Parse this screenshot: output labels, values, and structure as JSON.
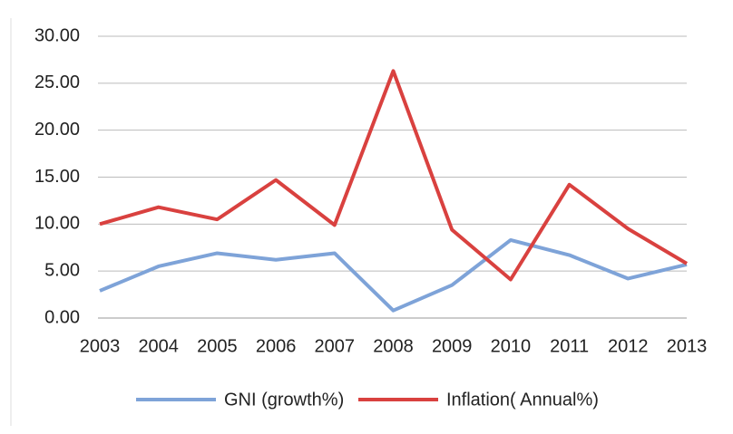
{
  "chart_data": {
    "type": "line",
    "categories": [
      "2003",
      "2004",
      "2005",
      "2006",
      "2007",
      "2008",
      "2009",
      "2010",
      "2011",
      "2012",
      "2013"
    ],
    "series": [
      {
        "name": "GNI (growth%)",
        "color": "#7ea3d8",
        "values": [
          2.9,
          5.5,
          6.9,
          6.2,
          6.9,
          0.8,
          3.5,
          8.3,
          6.7,
          4.2,
          5.7
        ]
      },
      {
        "name": "Inflation( Annual%)",
        "color": "#d9413f",
        "values": [
          10.0,
          11.8,
          10.5,
          14.7,
          9.9,
          26.3,
          9.4,
          4.1,
          14.2,
          9.5,
          5.8
        ]
      }
    ],
    "ylim": [
      0,
      30
    ],
    "yticks": [
      {
        "value": 0,
        "label": "0.00"
      },
      {
        "value": 5,
        "label": "5.00"
      },
      {
        "value": 10,
        "label": "10.00"
      },
      {
        "value": 15,
        "label": "15.00"
      },
      {
        "value": 20,
        "label": "20.00"
      },
      {
        "value": 25,
        "label": "25.00"
      },
      {
        "value": 30,
        "label": "30.00"
      }
    ],
    "grid": true,
    "legend": "bottom"
  }
}
